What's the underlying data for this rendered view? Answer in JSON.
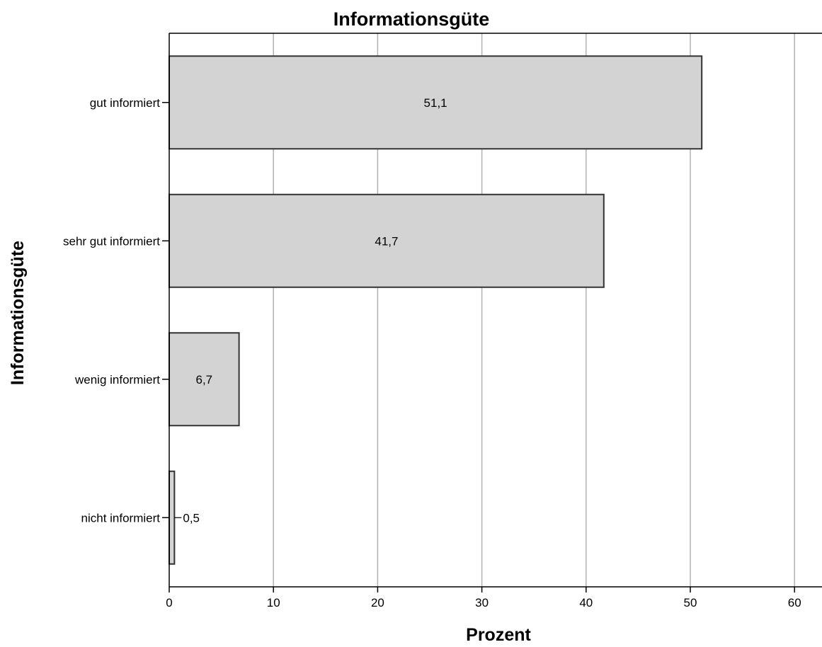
{
  "chart_data": {
    "type": "bar",
    "orientation": "horizontal",
    "title": "Informationsgüte",
    "xlabel": "Prozent",
    "ylabel": "Informationsgüte",
    "categories": [
      "gut informiert",
      "sehr gut informiert",
      "wenig informiert",
      "nicht informiert"
    ],
    "values": [
      51.1,
      41.7,
      6.7,
      0.5
    ],
    "data_labels": [
      "51,1",
      "41,7",
      "6,7",
      "0,5"
    ],
    "xlim": [
      0,
      63
    ],
    "xticks": [
      0,
      10,
      20,
      30,
      40,
      50,
      60
    ],
    "xtick_labels": [
      "0",
      "10",
      "20",
      "30",
      "40",
      "50",
      "60"
    ],
    "grid": "vertical",
    "legend": "none",
    "colors": {
      "bar_fill": "#d3d3d3",
      "bar_stroke": "#333333",
      "gridline": "#b3b3b3",
      "axis": "#000000"
    }
  }
}
